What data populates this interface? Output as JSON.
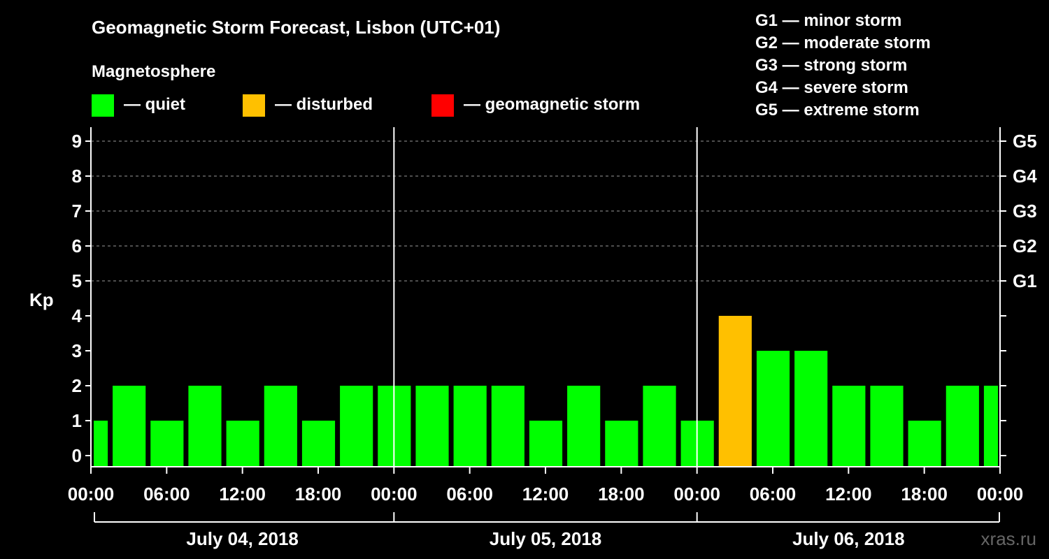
{
  "chart_data": {
    "type": "bar",
    "title": "Geomagnetic Storm Forecast, Lisbon (UTC+01)",
    "legend_title": "Magnetosphere",
    "legend": [
      {
        "label": "— quiet",
        "color": "#00ff00"
      },
      {
        "label": "— disturbed",
        "color": "#ffc000"
      },
      {
        "label": "— geomagnetic storm",
        "color": "#ff0000"
      }
    ],
    "storm_scale": [
      "G1 — minor storm",
      "G2 — moderate storm",
      "G3 — strong storm",
      "G4 — severe storm",
      "G5 — extreme storm"
    ],
    "ylabel": "Kp",
    "ylim": [
      0,
      9
    ],
    "y_ticks": [
      "0",
      "1",
      "2",
      "3",
      "4",
      "5",
      "6",
      "7",
      "8",
      "9"
    ],
    "right_ticks": [
      {
        "kp": 5,
        "label": "G1"
      },
      {
        "kp": 6,
        "label": "G2"
      },
      {
        "kp": 7,
        "label": "G3"
      },
      {
        "kp": 8,
        "label": "G4"
      },
      {
        "kp": 9,
        "label": "G5"
      }
    ],
    "grid": "dashed horizontal at Kp 5-9",
    "x_range_hours": [
      0,
      72
    ],
    "bar_interval_hours": 3,
    "x_ticks": [
      {
        "h": 0,
        "label": "00:00"
      },
      {
        "h": 6,
        "label": "06:00"
      },
      {
        "h": 12,
        "label": "12:00"
      },
      {
        "h": 18,
        "label": "18:00"
      },
      {
        "h": 24,
        "label": "00:00"
      },
      {
        "h": 30,
        "label": "06:00"
      },
      {
        "h": 36,
        "label": "12:00"
      },
      {
        "h": 42,
        "label": "18:00"
      },
      {
        "h": 48,
        "label": "00:00"
      },
      {
        "h": 54,
        "label": "06:00"
      },
      {
        "h": 60,
        "label": "12:00"
      },
      {
        "h": 66,
        "label": "18:00"
      },
      {
        "h": 72,
        "label": "00:00"
      }
    ],
    "days": [
      "July 04, 2018",
      "July 05, 2018",
      "July 06, 2018"
    ],
    "values": [
      1,
      2,
      1,
      2,
      1,
      2,
      1,
      2,
      2,
      2,
      2,
      2,
      1,
      2,
      1,
      2,
      1,
      4,
      3,
      3,
      2,
      2,
      1,
      2,
      2
    ],
    "watermark": "xras.ru"
  }
}
